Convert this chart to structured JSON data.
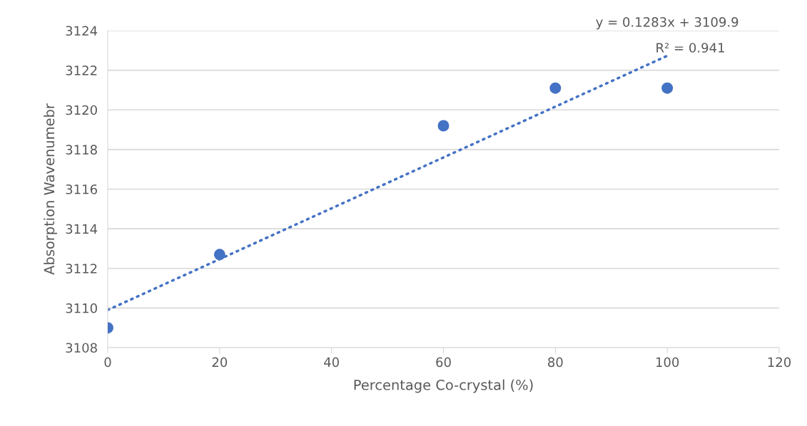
{
  "chart_data": {
    "type": "scatter",
    "xlabel": "Percentage Co-crystal (%)",
    "ylabel": "Absorption Wavenumebr",
    "x": [
      0,
      20,
      60,
      80,
      100
    ],
    "series": [
      {
        "color": "#4472c4",
        "values": [
          3109.0,
          3112.7,
          3119.2,
          3121.1,
          3121.1
        ],
        "marker": "circle"
      },
      {
        "type": "line",
        "color": "#4472c4",
        "x": [
          0,
          100
        ],
        "values": [
          3109.9,
          3122.73
        ],
        "line_style": "dotted",
        "marker": "none"
      }
    ],
    "annotations": [
      {
        "text": "y = 0.1283x + 3109.9",
        "x": 100,
        "y": 3122.73
      },
      {
        "text": "R² = 0.941",
        "x": 100,
        "y": 3122.73
      }
    ],
    "xlim": [
      0,
      120
    ],
    "xticks": [
      0,
      20,
      40,
      60,
      80,
      100,
      120
    ],
    "ylim": [
      3108,
      3124
    ],
    "yticks": [
      3108,
      3110,
      3112,
      3114,
      3116,
      3118,
      3120,
      3122,
      3124
    ],
    "grid": "y",
    "legend": false
  }
}
